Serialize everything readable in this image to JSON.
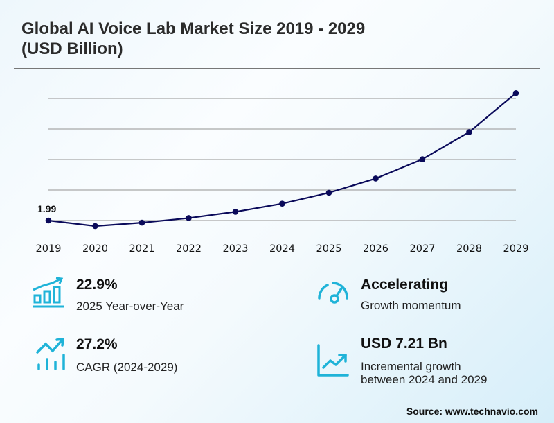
{
  "header": {
    "title_line1": "Global AI Voice Lab Market Size 2019 - 2029",
    "title_line2": "(USD Billion)"
  },
  "chart_data": {
    "type": "line",
    "title": "Global AI Voice Lab Market Size 2019 - 2029 (USD Billion)",
    "xlabel": "",
    "ylabel": "USD Billion",
    "x": [
      "2019",
      "2020",
      "2021",
      "2022",
      "2023",
      "2024",
      "2025",
      "2026",
      "2027",
      "2028",
      "2029"
    ],
    "series": [
      {
        "name": "Market Size",
        "values": [
          1.99,
          1.63,
          1.85,
          2.15,
          2.56,
          3.09,
          3.8,
          4.73,
          5.99,
          7.76,
          10.3
        ]
      }
    ],
    "ylim": [
      1.99,
      9.95
    ],
    "gridlines": [
      1.99,
      3.98,
      5.97,
      7.96,
      9.95
    ],
    "grid": true,
    "y_tick_labels_visible": false,
    "data_labels": [
      {
        "index": 0,
        "text": "1.99"
      }
    ],
    "line_color": "#0a0a5a",
    "grid_color": "#a8a8a8"
  },
  "stats": [
    {
      "icon": "bar-chart-growth-icon",
      "value": "22.9%",
      "label": "2025 Year-over-Year"
    },
    {
      "icon": "speedometer-icon",
      "value": "Accelerating",
      "label": "Growth momentum"
    },
    {
      "icon": "trend-up-bars-icon",
      "value": "27.2%",
      "label": "CAGR (2024-2029)"
    },
    {
      "icon": "line-chart-up-icon",
      "value": "USD 7.21 Bn",
      "label_line1": "Incremental growth",
      "label_line2": "between 2024 and 2029"
    }
  ],
  "colors": {
    "accent": "#1fb3d8",
    "text": "#111111"
  },
  "footer": {
    "source": "Source: www.technavio.com"
  }
}
